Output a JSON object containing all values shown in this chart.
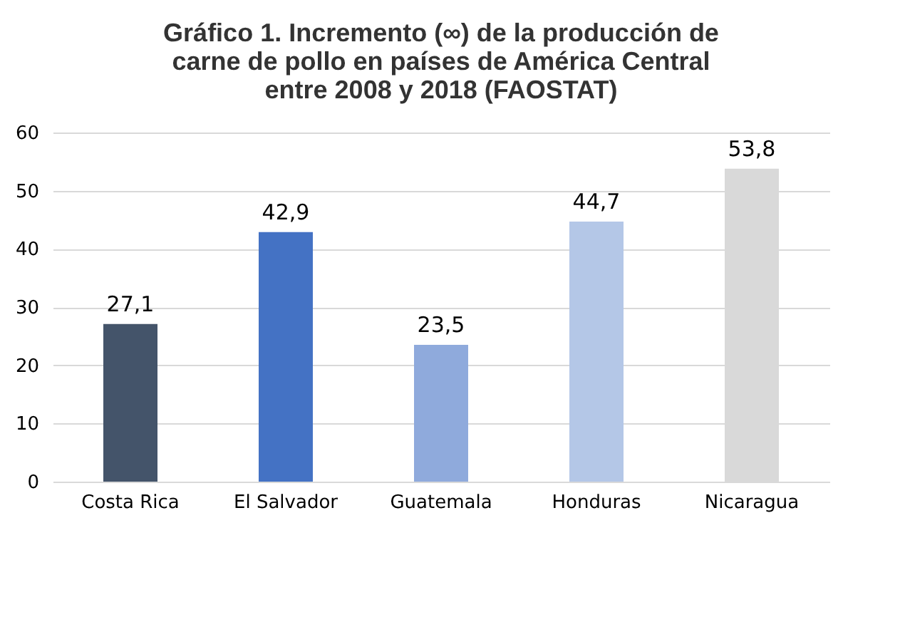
{
  "chart_data": {
    "type": "bar",
    "title": "Gráfico 1. Incremento (∞) de la producción de carne de pollo en países de América Central entre 2008 y 2018 (FAOSTAT)",
    "categories": [
      "Costa Rica",
      "El Salvador",
      "Guatemala",
      "Honduras",
      "Nicaragua"
    ],
    "values": [
      27.1,
      42.9,
      23.5,
      44.7,
      53.8
    ],
    "colors": [
      "#44546a",
      "#4472c4",
      "#8faadc",
      "#b4c7e7",
      "#d9d9d9"
    ],
    "value_labels": [
      "27,1",
      "42,9",
      "23,5",
      "44,7",
      "53,8"
    ],
    "ylim": [
      0,
      60
    ],
    "yticks": [
      0,
      10,
      20,
      30,
      40,
      50,
      60
    ],
    "grid": "y"
  }
}
